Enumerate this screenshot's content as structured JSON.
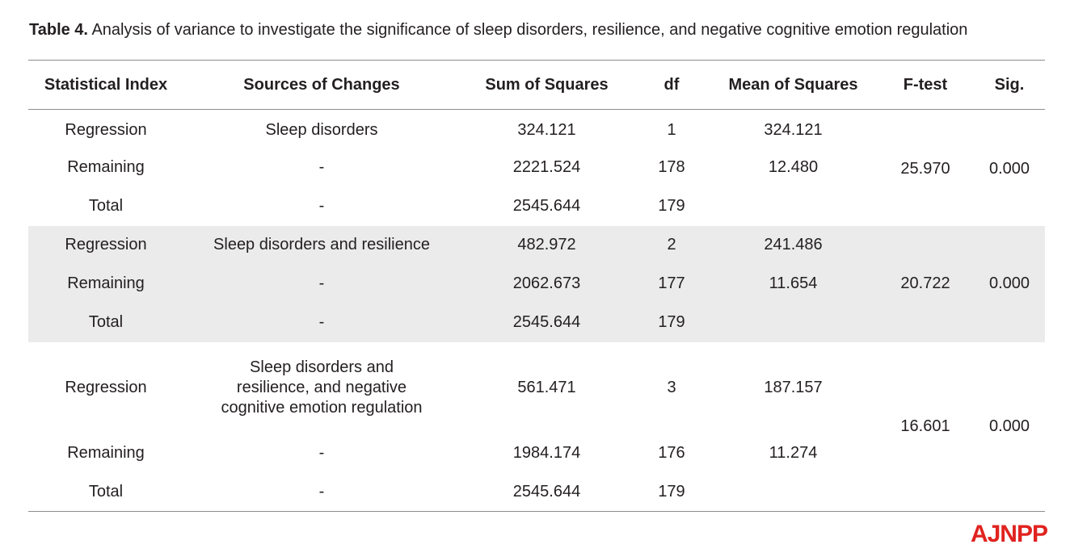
{
  "caption": {
    "label": "Table 4.",
    "text": " Analysis of variance to investigate the significance of sleep disorders, resilience, and negative cognitive emotion regulation"
  },
  "table": {
    "headers": [
      "Statistical Index",
      "Sources of Changes",
      "Sum of Squares",
      "df",
      "Mean of Squares",
      "F-test",
      "Sig."
    ],
    "groups": [
      {
        "f_test": "25.970",
        "sig": "0.000",
        "rows": [
          {
            "index": "Regression",
            "source": "Sleep disorders",
            "ss": "324.121",
            "df": "1",
            "ms": "324.121"
          },
          {
            "index": "Remaining",
            "source": "-",
            "ss": "2221.524",
            "df": "178",
            "ms": "12.480"
          },
          {
            "index": "Total",
            "source": "-",
            "ss": "2545.644",
            "df": "179",
            "ms": ""
          }
        ]
      },
      {
        "f_test": "20.722",
        "sig": "0.000",
        "rows": [
          {
            "index": "Regression",
            "source": "Sleep disorders and resilience",
            "ss": "482.972",
            "df": "2",
            "ms": "241.486"
          },
          {
            "index": "Remaining",
            "source": "-",
            "ss": "2062.673",
            "df": "177",
            "ms": "11.654"
          },
          {
            "index": "Total",
            "source": "-",
            "ss": "2545.644",
            "df": "179",
            "ms": ""
          }
        ]
      },
      {
        "f_test": "16.601",
        "sig": "0.000",
        "rows": [
          {
            "index": "Regression",
            "source": "Sleep disorders and resilience, and negative cognitive emotion regulation",
            "ss": "561.471",
            "df": "3",
            "ms": "187.157"
          },
          {
            "index": "Remaining",
            "source": "-",
            "ss": "1984.174",
            "df": "176",
            "ms": "11.274"
          },
          {
            "index": "Total",
            "source": "-",
            "ss": "2545.644",
            "df": "179",
            "ms": ""
          }
        ]
      }
    ]
  },
  "logo": {
    "text": "AJNPP",
    "color": "#e0231f"
  }
}
